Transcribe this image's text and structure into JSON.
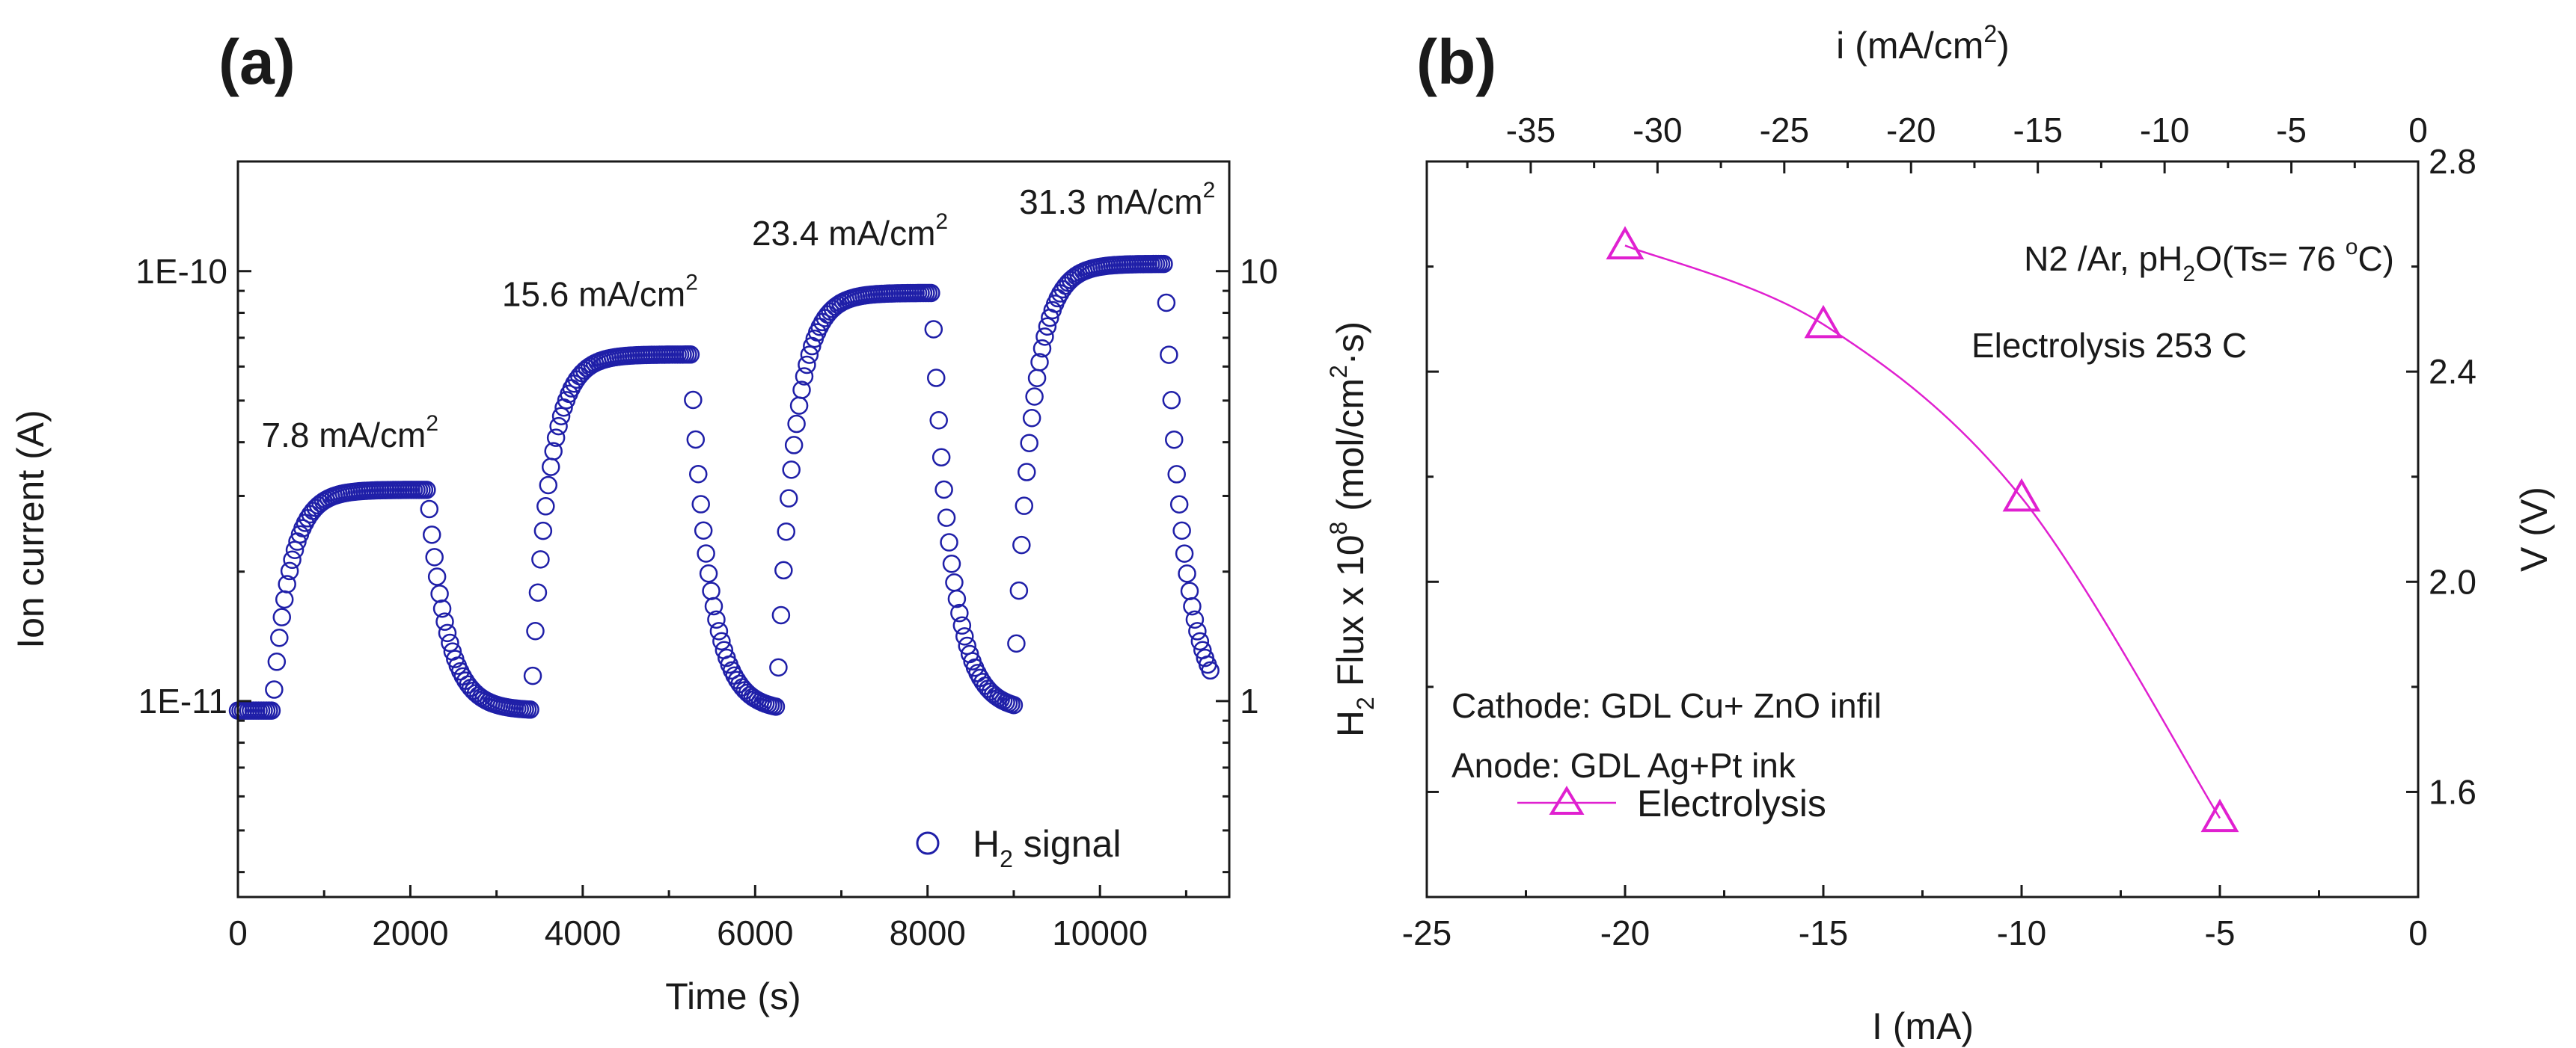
{
  "figure": {
    "panel_a_label": "(a)",
    "panel_b_label": "(b)"
  },
  "chart_data": [
    {
      "type": "scatter",
      "id": "a",
      "title": "",
      "xlabel": "Time (s)",
      "ylabel": "Ion current (A)",
      "y2label": "H2 Flux x 10^8 (mol/cm2·s)",
      "y2label_parts": {
        "a": "H",
        "b": "2",
        "c": " Flux x 10",
        "d": "8",
        "e": " (mol/cm",
        "f": "2",
        "g": "·s)"
      },
      "xlim": [
        0,
        11500
      ],
      "ylim": [
        3.5e-12,
        1.8e-10
      ],
      "yscale": "log",
      "y2scale": "log",
      "y2lim": [
        0.35,
        18
      ],
      "x_ticks": [
        "0",
        "2000",
        "4000",
        "6000",
        "8000",
        "10000"
      ],
      "x_tick_values": [
        0,
        2000,
        4000,
        6000,
        8000,
        10000
      ],
      "y_ticks": [
        "1E-11",
        "1E-10"
      ],
      "y_tick_values": [
        1e-11,
        1e-10
      ],
      "y2_ticks": [
        "1",
        "10"
      ],
      "y2_tick_values": [
        1,
        10
      ],
      "marker_color": "#1f1fa8",
      "series": [
        {
          "name": "H2 signal",
          "legend": {
            "a": "H",
            "b": "2",
            "c": " signal"
          },
          "baseline": 9.5e-12,
          "steps": [
            {
              "start": 400,
              "end": 2200,
              "level": 3.1e-11
            },
            {
              "start": 3400,
              "end": 5250,
              "level": 6.4e-11
            },
            {
              "start": 6250,
              "end": 8050,
              "level": 8.9e-11
            },
            {
              "start": 9000,
              "end": 10750,
              "level": 1.04e-10
            }
          ],
          "x_max": 11300,
          "sample_step": 30
        }
      ],
      "annotations": [
        {
          "text": "7.8 mA/cm",
          "sup": "2",
          "x": 1300,
          "y": 3.9e-11
        },
        {
          "text": "15.6 mA/cm",
          "sup": "2",
          "x": 4200,
          "y": 8.3e-11
        },
        {
          "text": "23.4 mA/cm",
          "sup": "2",
          "x": 7100,
          "y": 1.15e-10
        },
        {
          "text": "31.3 mA/cm",
          "sup": "2",
          "x": 10200,
          "y": 1.36e-10
        }
      ]
    },
    {
      "type": "line",
      "id": "b",
      "title": "",
      "xlabel": "I (mA)",
      "ylabel": "V (V)",
      "x2label": "i (mA/cm2)",
      "x2label_parts": {
        "a": "i (mA/cm",
        "b": "2",
        "c": ")"
      },
      "xlim": [
        -25,
        0
      ],
      "ylim": [
        1.4,
        2.8
      ],
      "x2lim": [
        -39.1,
        0
      ],
      "x_ticks": [
        "-25",
        "-20",
        "-15",
        "-10",
        "-5",
        "0"
      ],
      "x_tick_values": [
        -25,
        -20,
        -15,
        -10,
        -5,
        0
      ],
      "x2_ticks": [
        "-35",
        "-30",
        "-25",
        "-20",
        "-15",
        "-10",
        "-5",
        "0"
      ],
      "x2_tick_values": [
        -35,
        -30,
        -25,
        -20,
        -15,
        -10,
        -5,
        0
      ],
      "y2_ticks": [
        "1.6",
        "2.0",
        "2.4",
        "2.8"
      ],
      "y2_tick_values": [
        1.6,
        2.0,
        2.4,
        2.8
      ],
      "line_color": "#e020d0",
      "series": [
        {
          "name": "Electrolysis",
          "x": [
            -20,
            -15,
            -10,
            -5
          ],
          "y": [
            2.64,
            2.49,
            2.16,
            1.55
          ]
        }
      ],
      "annotations": {
        "condition": {
          "a": "N2 /Ar, pH",
          "b": "2",
          "c": "O(Ts= 76 ",
          "d": "o",
          "e": "C)"
        },
        "temperature": "Electrolysis 253 C",
        "cathode": "Cathode: GDL Cu+ ZnO infil",
        "anode": "Anode: GDL Ag+Pt ink"
      }
    }
  ]
}
